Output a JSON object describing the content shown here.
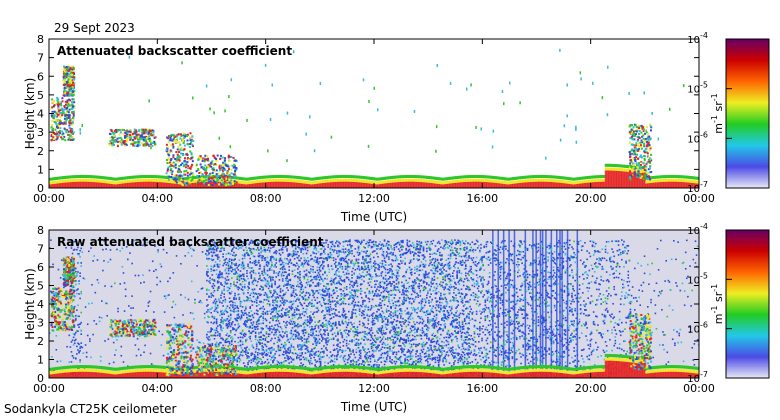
{
  "date": "29 Sept 2023",
  "footer": "Sodankyla CT25K ceilometer",
  "colors": {
    "sky_fill": "#ffffff",
    "raw_bg": "#d9d9e8",
    "noise_blue": "#2c4bd9",
    "noise_cyan": "#36b8e0",
    "signal_green": "#2fc62a",
    "signal_yellow": "#f2e62b",
    "signal_red": "#e52222",
    "colorbar_stops": [
      "#e8e8f6",
      "#4b4be6",
      "#22c8e8",
      "#22cc22",
      "#eeee22",
      "#ff6600",
      "#cc0000",
      "#660066"
    ]
  },
  "chart_data": [
    {
      "type": "heatmap",
      "title": "Attenuated backscatter coefficient",
      "xlabel": "Time (UTC)",
      "ylabel": "Height (km)",
      "xticks": [
        "00:00",
        "04:00",
        "08:00",
        "12:00",
        "16:00",
        "20:00",
        "00:00"
      ],
      "xlim_hours": [
        0,
        24
      ],
      "yticks": [
        "0",
        "1",
        "2",
        "3",
        "4",
        "5",
        "6",
        "7",
        "8"
      ],
      "ylim": [
        0,
        8
      ],
      "colorbar": {
        "scale": "log",
        "range": [
          1e-07,
          0.0001
        ],
        "tick_bases": [
          "10",
          "10",
          "10",
          "10"
        ],
        "tick_exponents": [
          "-7",
          "-6",
          "-5",
          "-4"
        ],
        "label_base": "m",
        "label_exp1": "-1",
        "label_mid": " sr",
        "label_exp2": "-1"
      }
    },
    {
      "type": "heatmap",
      "title": "Raw attenuated backscatter coefficient",
      "xlabel": "Time (UTC)",
      "ylabel": "Height (km)",
      "xticks": [
        "00:00",
        "04:00",
        "08:00",
        "12:00",
        "16:00",
        "20:00",
        "00:00"
      ],
      "xlim_hours": [
        0,
        24
      ],
      "yticks": [
        "0",
        "1",
        "2",
        "3",
        "4",
        "5",
        "6",
        "7",
        "8"
      ],
      "ylim": [
        0,
        8
      ],
      "colorbar": {
        "scale": "log",
        "range": [
          1e-07,
          0.0001
        ],
        "tick_bases": [
          "10",
          "10",
          "10",
          "10"
        ],
        "tick_exponents": [
          "-7",
          "-6",
          "-5",
          "-4"
        ],
        "label_base": "m",
        "label_exp1": "-1",
        "label_mid": " sr",
        "label_exp2": "-1"
      }
    }
  ]
}
